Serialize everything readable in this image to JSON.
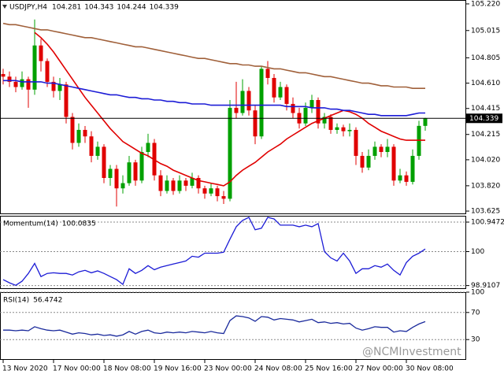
{
  "chart_data": [
    {
      "type": "candlestick",
      "title": "USDJPY,H4",
      "categories": [
        "13 Nov 2020",
        null,
        null,
        null,
        null,
        null,
        null,
        null,
        "17 Nov 00:00",
        null,
        null,
        null,
        null,
        null,
        null,
        null,
        "18 Nov 08:00",
        null,
        null,
        null,
        null,
        null,
        null,
        null,
        "19 Nov 16:00",
        null,
        null,
        null,
        null,
        null,
        null,
        null,
        "23 Nov 00:00",
        null,
        null,
        null,
        null,
        null,
        null,
        null,
        "24 Nov 08:00",
        null,
        null,
        null,
        null,
        null,
        null,
        null,
        "25 Nov 16:00",
        null,
        null,
        null,
        null,
        null,
        null,
        null,
        "27 Nov 00:00",
        null,
        null,
        null,
        null,
        null,
        null,
        null,
        "30 Nov 08:00",
        null,
        null,
        null
      ],
      "open": [
        104.68,
        104.66,
        104.62,
        104.58,
        104.64,
        104.56,
        104.9,
        104.78,
        104.62,
        104.55,
        104.6,
        104.35,
        104.15,
        104.25,
        104.2,
        104.05,
        104.12,
        103.88,
        103.95,
        103.8,
        103.84,
        104.0,
        103.86,
        104.08,
        104.15,
        103.9,
        103.78,
        103.86,
        103.78,
        103.86,
        103.82,
        103.88,
        103.8,
        103.76,
        103.8,
        103.74,
        103.72,
        104.42,
        104.38,
        104.55,
        104.4,
        104.2,
        104.72,
        104.65,
        104.5,
        104.58,
        104.45,
        104.38,
        104.3,
        104.42,
        104.48,
        104.3,
        104.35,
        104.25,
        104.27,
        104.24,
        104.25,
        104.05,
        103.96,
        104.05,
        104.12,
        104.08,
        104.12,
        103.86,
        103.9,
        103.85,
        104.05,
        104.281
      ],
      "high": [
        104.72,
        104.7,
        104.66,
        104.7,
        104.66,
        105.1,
        104.95,
        104.8,
        104.66,
        104.65,
        104.62,
        104.38,
        104.3,
        104.28,
        104.24,
        104.16,
        104.14,
        103.98,
        103.98,
        103.9,
        104.05,
        104.02,
        104.12,
        104.22,
        104.18,
        103.94,
        103.9,
        103.88,
        103.9,
        103.88,
        103.92,
        103.9,
        103.82,
        103.84,
        103.82,
        103.78,
        104.48,
        104.62,
        104.64,
        104.58,
        104.44,
        104.74,
        104.78,
        104.68,
        104.62,
        104.6,
        104.5,
        104.42,
        104.46,
        104.52,
        104.5,
        104.38,
        104.37,
        104.3,
        104.29,
        104.3,
        104.27,
        104.08,
        104.1,
        104.16,
        104.14,
        104.18,
        104.14,
        103.95,
        103.93,
        104.1,
        104.32,
        104.343
      ],
      "low": [
        104.6,
        104.58,
        104.54,
        104.56,
        104.42,
        104.52,
        104.7,
        104.58,
        104.5,
        104.48,
        104.3,
        104.1,
        104.12,
        104.15,
        104.0,
        104.02,
        103.84,
        103.82,
        103.66,
        103.76,
        103.82,
        103.82,
        103.84,
        104.04,
        103.86,
        103.74,
        103.76,
        103.75,
        103.76,
        103.78,
        103.8,
        103.76,
        103.72,
        103.74,
        103.7,
        103.68,
        103.7,
        104.34,
        104.36,
        104.36,
        104.14,
        104.18,
        104.6,
        104.46,
        104.48,
        104.4,
        104.34,
        104.26,
        104.28,
        104.38,
        104.26,
        104.26,
        104.22,
        104.22,
        104.2,
        104.2,
        103.98,
        103.92,
        103.94,
        104.02,
        104.04,
        104.04,
        103.82,
        103.84,
        103.82,
        103.83,
        104.02,
        104.244
      ],
      "close": [
        104.66,
        104.62,
        104.58,
        104.64,
        104.56,
        104.9,
        104.78,
        104.62,
        104.55,
        104.6,
        104.35,
        104.15,
        104.25,
        104.2,
        104.05,
        104.12,
        103.88,
        103.95,
        103.8,
        103.84,
        104.0,
        103.86,
        104.08,
        104.15,
        103.9,
        103.78,
        103.86,
        103.78,
        103.86,
        103.82,
        103.88,
        103.8,
        103.76,
        103.8,
        103.74,
        103.72,
        104.42,
        104.38,
        104.55,
        104.4,
        104.2,
        104.72,
        104.65,
        104.5,
        104.58,
        104.45,
        104.38,
        104.3,
        104.42,
        104.48,
        104.3,
        104.35,
        104.25,
        104.27,
        104.24,
        104.25,
        104.05,
        103.96,
        104.05,
        104.12,
        104.08,
        104.12,
        103.86,
        103.9,
        103.85,
        104.05,
        104.281,
        104.339
      ],
      "up_color": "#00a000",
      "down_color": "#e00000",
      "series": [
        {
          "color": "#e00000",
          "values": [
            null,
            null,
            null,
            null,
            null,
            105.0,
            104.96,
            104.91,
            104.85,
            104.78,
            104.71,
            104.64,
            104.57,
            104.5,
            104.44,
            104.38,
            104.32,
            104.26,
            104.21,
            104.16,
            104.13,
            104.1,
            104.07,
            104.05,
            104.02,
            103.99,
            103.97,
            103.94,
            103.92,
            103.9,
            103.88,
            103.86,
            103.85,
            103.84,
            103.83,
            103.82,
            103.85,
            103.9,
            103.94,
            103.97,
            104.0,
            104.04,
            104.08,
            104.11,
            104.14,
            104.18,
            104.21,
            104.24,
            104.27,
            104.3,
            104.32,
            104.34,
            104.36,
            104.38,
            104.4,
            104.39,
            104.37,
            104.34,
            104.3,
            104.27,
            104.24,
            104.22,
            104.2,
            104.18,
            104.17,
            104.17,
            104.17,
            104.17
          ]
        },
        {
          "color": "#1c1cd6",
          "values": [
            104.63,
            104.63,
            104.63,
            104.62,
            104.62,
            104.62,
            104.62,
            104.61,
            104.61,
            104.6,
            104.59,
            104.58,
            104.57,
            104.56,
            104.55,
            104.54,
            104.53,
            104.52,
            104.52,
            104.51,
            104.5,
            104.5,
            104.49,
            104.49,
            104.48,
            104.48,
            104.47,
            104.47,
            104.46,
            104.46,
            104.45,
            104.45,
            104.45,
            104.44,
            104.44,
            104.44,
            104.44,
            104.44,
            104.44,
            104.44,
            104.44,
            104.44,
            104.44,
            104.44,
            104.44,
            104.43,
            104.43,
            104.43,
            104.43,
            104.42,
            104.42,
            104.42,
            104.41,
            104.41,
            104.4,
            104.4,
            104.39,
            104.38,
            104.37,
            104.37,
            104.36,
            104.36,
            104.36,
            104.36,
            104.36,
            104.37,
            104.38,
            104.38
          ]
        },
        {
          "color": "#a0603a",
          "values": [
            105.07,
            105.06,
            105.06,
            105.05,
            105.04,
            105.03,
            105.02,
            105.02,
            105.01,
            105.0,
            104.99,
            104.98,
            104.97,
            104.96,
            104.96,
            104.95,
            104.94,
            104.93,
            104.92,
            104.91,
            104.9,
            104.89,
            104.89,
            104.88,
            104.87,
            104.86,
            104.85,
            104.84,
            104.83,
            104.82,
            104.81,
            104.8,
            104.8,
            104.79,
            104.78,
            104.77,
            104.76,
            104.76,
            104.75,
            104.75,
            104.74,
            104.74,
            104.73,
            104.72,
            104.72,
            104.71,
            104.7,
            104.69,
            104.69,
            104.68,
            104.67,
            104.66,
            104.66,
            104.65,
            104.64,
            104.63,
            104.62,
            104.61,
            104.61,
            104.6,
            104.59,
            104.59,
            104.58,
            104.58,
            104.58,
            104.57,
            104.57,
            104.57
          ]
        }
      ],
      "ylim": [
        103.601,
        105.25
      ],
      "yticks": [
        {
          "value": 105.22,
          "label": "105.220"
        },
        105.015,
        104.805,
        {
          "value": 104.61,
          "label": "104.610"
        },
        104.415,
        104.215,
        {
          "value": 104.02,
          "label": "104.020"
        },
        {
          "value": 103.82,
          "label": "103.820"
        },
        103.625
      ],
      "grid": false
    },
    {
      "type": "line",
      "title": "Momentum(14)",
      "color": "#1c1cd6",
      "values": [
        99.1,
        99.0,
        98.92,
        99.05,
        99.3,
        99.62,
        99.2,
        99.3,
        99.32,
        99.3,
        99.3,
        99.25,
        99.35,
        99.4,
        99.32,
        99.38,
        99.3,
        99.2,
        99.1,
        98.95,
        99.45,
        99.3,
        99.4,
        99.55,
        99.42,
        99.5,
        99.55,
        99.6,
        99.65,
        99.7,
        99.85,
        99.82,
        99.95,
        99.95,
        99.95,
        99.98,
        100.4,
        100.8,
        101.0,
        101.1,
        100.7,
        100.75,
        101.1,
        101.05,
        100.85,
        100.85,
        100.85,
        100.8,
        100.85,
        100.8,
        100.9,
        100.0,
        99.8,
        99.7,
        99.95,
        99.7,
        99.3,
        99.45,
        99.45,
        99.55,
        99.5,
        99.6,
        99.4,
        99.25,
        99.65,
        99.85,
        99.95,
        100.0835
      ],
      "ylim": [
        98.8,
        101.15
      ],
      "yticks": [
        100.9472,
        100,
        98.9107
      ],
      "grid": true
    },
    {
      "type": "line",
      "title": "RSI(14)",
      "color": "#1a2a9c",
      "values": [
        44,
        44,
        43,
        44,
        43,
        49,
        46,
        44,
        43,
        44,
        41,
        38,
        40,
        39,
        37,
        38,
        36,
        37,
        35,
        37,
        42,
        38,
        42,
        44,
        40,
        39,
        41,
        40,
        41,
        40,
        42,
        41,
        40,
        42,
        40,
        39,
        58,
        65,
        64,
        62,
        57,
        64,
        63,
        59,
        61,
        60,
        59,
        56,
        58,
        60,
        55,
        56,
        54,
        55,
        53,
        54,
        47,
        44,
        46,
        49,
        48,
        48,
        41,
        43,
        42,
        48,
        53,
        56.4742
      ],
      "ylim": [
        0,
        100
      ],
      "yticks": [
        100,
        70,
        30
      ],
      "grid": true
    }
  ],
  "watermark": "@NCMInvestment"
}
